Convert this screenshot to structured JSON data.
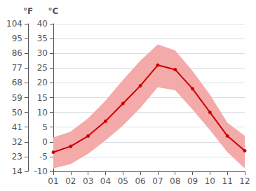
{
  "chart_data": {
    "type": "line",
    "x": [
      1,
      2,
      3,
      4,
      5,
      6,
      7,
      8,
      9,
      10,
      11,
      12
    ],
    "series": [
      {
        "type": "band",
        "color": "#f5aaaa",
        "low": [
          -9.0,
          -7.5,
          -4.0,
          0.5,
          5.5,
          11.5,
          18.5,
          17.5,
          11.0,
          4.0,
          -3.5,
          -9.0
        ],
        "high": [
          1.5,
          3.5,
          8.0,
          14.0,
          21.0,
          27.5,
          33.0,
          31.0,
          24.0,
          16.0,
          6.5,
          2.0
        ]
      },
      {
        "type": "line",
        "color": "#cc0000",
        "marker": "o",
        "values": [
          -3.5,
          -1.5,
          2.0,
          7.0,
          13.0,
          19.0,
          26.0,
          24.5,
          18.0,
          10.0,
          2.0,
          -3.0
        ]
      }
    ],
    "xlim": [
      1,
      12
    ],
    "xticks": [
      {
        "value": 1,
        "label": "01"
      },
      {
        "value": 2,
        "label": "02"
      },
      {
        "value": 3,
        "label": "03"
      },
      {
        "value": 4,
        "label": "04"
      },
      {
        "value": 5,
        "label": "05"
      },
      {
        "value": 6,
        "label": "06"
      },
      {
        "value": 7,
        "label": "07"
      },
      {
        "value": 8,
        "label": "08"
      },
      {
        "value": 9,
        "label": "09"
      },
      {
        "value": 10,
        "label": "10"
      },
      {
        "value": 11,
        "label": "11"
      },
      {
        "value": 12,
        "label": "12"
      }
    ],
    "ylabel": "°C",
    "ylim": [
      -10,
      40
    ],
    "yticks": [
      -10,
      -5,
      0,
      5,
      10,
      15,
      20,
      25,
      30,
      35,
      40
    ],
    "y2label": "°F",
    "y2lim": [
      14,
      104
    ],
    "y2ticks": [
      14,
      23,
      32,
      41,
      50,
      59,
      68,
      77,
      86,
      95,
      104
    ],
    "grid": true
  }
}
